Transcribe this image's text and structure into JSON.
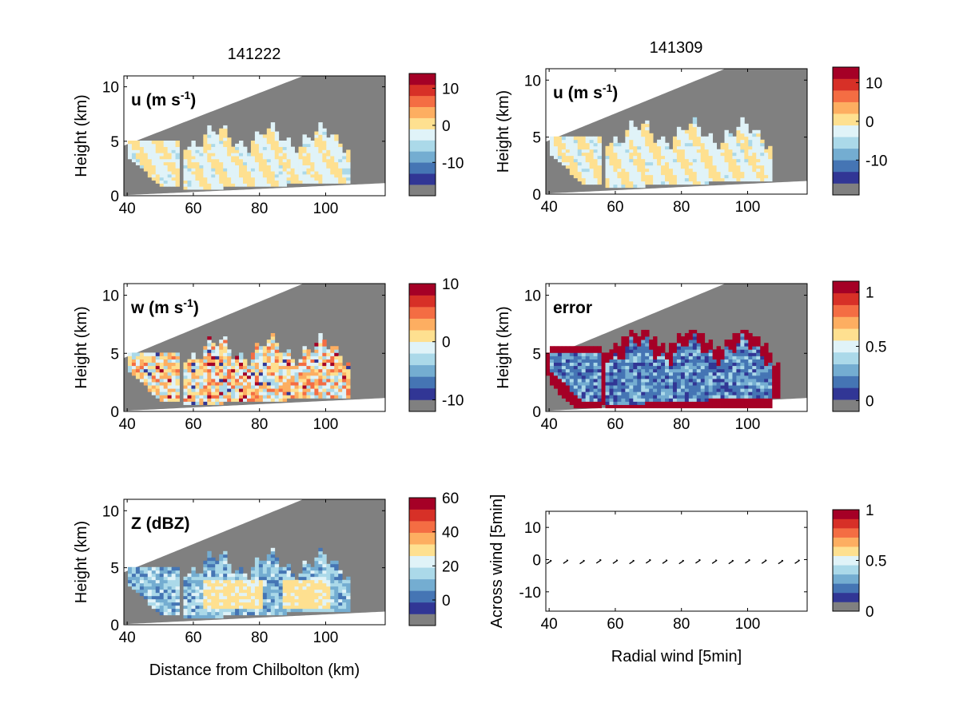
{
  "figure": {
    "column_titles": [
      "141222",
      "141309"
    ],
    "bottom_xlabel_left": "Distance from Chilbolton (km)",
    "bottom_xlabel_right": "Radial wind [5min]"
  },
  "colors": {
    "missing": "#808080",
    "scale": [
      "#313695",
      "#4575b4",
      "#74add1",
      "#abd9e9",
      "#e0f3f8",
      "#fee090",
      "#fdae61",
      "#f46d43",
      "#d73027",
      "#a50026"
    ]
  },
  "chart_data": [
    {
      "id": "u-141222",
      "type": "heatmap",
      "panel_label": "u (m s",
      "panel_label_sup": "-1",
      "panel_label_end": ")",
      "ylabel": "Height (km)",
      "xlim": [
        39,
        118
      ],
      "ylim": [
        0,
        11
      ],
      "xticks": [
        40,
        60,
        80,
        100
      ],
      "yticks": [
        0,
        5,
        10
      ],
      "colorbar": {
        "range": [
          -19,
          14
        ],
        "ticks": [
          -10,
          0,
          10
        ]
      },
      "field": "u"
    },
    {
      "id": "u-141309",
      "type": "heatmap",
      "panel_label": "u (m s",
      "panel_label_sup": "-1",
      "panel_label_end": ")",
      "ylabel": "Height (km)",
      "xlim": [
        39,
        118
      ],
      "ylim": [
        0,
        11
      ],
      "xticks": [
        40,
        60,
        80,
        100
      ],
      "yticks": [
        0,
        5,
        10
      ],
      "colorbar": {
        "range": [
          -19,
          14
        ],
        "ticks": [
          -10,
          0,
          10
        ]
      },
      "field": "u"
    },
    {
      "id": "w-141222",
      "type": "heatmap",
      "panel_label": "w (m s",
      "panel_label_sup": "-1",
      "panel_label_end": ")",
      "ylabel": "Height (km)",
      "xlim": [
        39,
        118
      ],
      "ylim": [
        0,
        11
      ],
      "xticks": [
        40,
        60,
        80,
        100
      ],
      "yticks": [
        0,
        5,
        10
      ],
      "colorbar": {
        "range": [
          -12,
          10
        ],
        "ticks": [
          -10,
          0,
          10
        ]
      },
      "field": "w"
    },
    {
      "id": "error-141309",
      "type": "heatmap",
      "panel_label": "error",
      "panel_label_sup": "",
      "panel_label_end": "",
      "ylabel": "Height (km)",
      "xlim": [
        39,
        118
      ],
      "ylim": [
        0,
        11
      ],
      "xticks": [
        40,
        60,
        80,
        100
      ],
      "yticks": [
        0,
        5,
        10
      ],
      "colorbar": {
        "range": [
          -0.1,
          1.1
        ],
        "ticks": [
          0,
          0.5,
          1
        ]
      },
      "field": "error"
    },
    {
      "id": "z-141222",
      "type": "heatmap",
      "panel_label": "Z (dBZ)",
      "panel_label_sup": "",
      "panel_label_end": "",
      "ylabel": "Height (km)",
      "xlabel": "Distance from Chilbolton (km)",
      "xlim": [
        39,
        118
      ],
      "ylim": [
        0,
        11
      ],
      "xticks": [
        40,
        60,
        80,
        100
      ],
      "yticks": [
        0,
        5,
        10
      ],
      "colorbar": {
        "range": [
          -15,
          60
        ],
        "ticks": [
          0,
          20,
          40,
          60
        ]
      },
      "field": "z"
    },
    {
      "id": "wind-vectors",
      "type": "scatter",
      "panel_label": "",
      "ylabel": "Across wind [5min]",
      "xlabel": "Radial wind [5min]",
      "xlim": [
        39,
        118
      ],
      "ylim": [
        -16,
        15
      ],
      "xticks": [
        40,
        60,
        80,
        100
      ],
      "yticks": [
        -10,
        0,
        10
      ],
      "colorbar": {
        "range": [
          0,
          1
        ],
        "ticks": [
          0,
          0.5,
          1
        ]
      },
      "x": [
        40,
        45,
        50,
        55,
        60,
        65,
        70,
        75,
        80,
        85,
        90,
        95,
        100,
        105,
        110,
        115
      ],
      "y": [
        -0.8,
        -0.7,
        -0.8,
        -0.6,
        -0.7,
        -0.8,
        -0.6,
        -0.7,
        -0.8,
        -0.6,
        -0.7,
        -0.8,
        -0.6,
        -0.7,
        -0.8,
        -0.7
      ]
    }
  ]
}
